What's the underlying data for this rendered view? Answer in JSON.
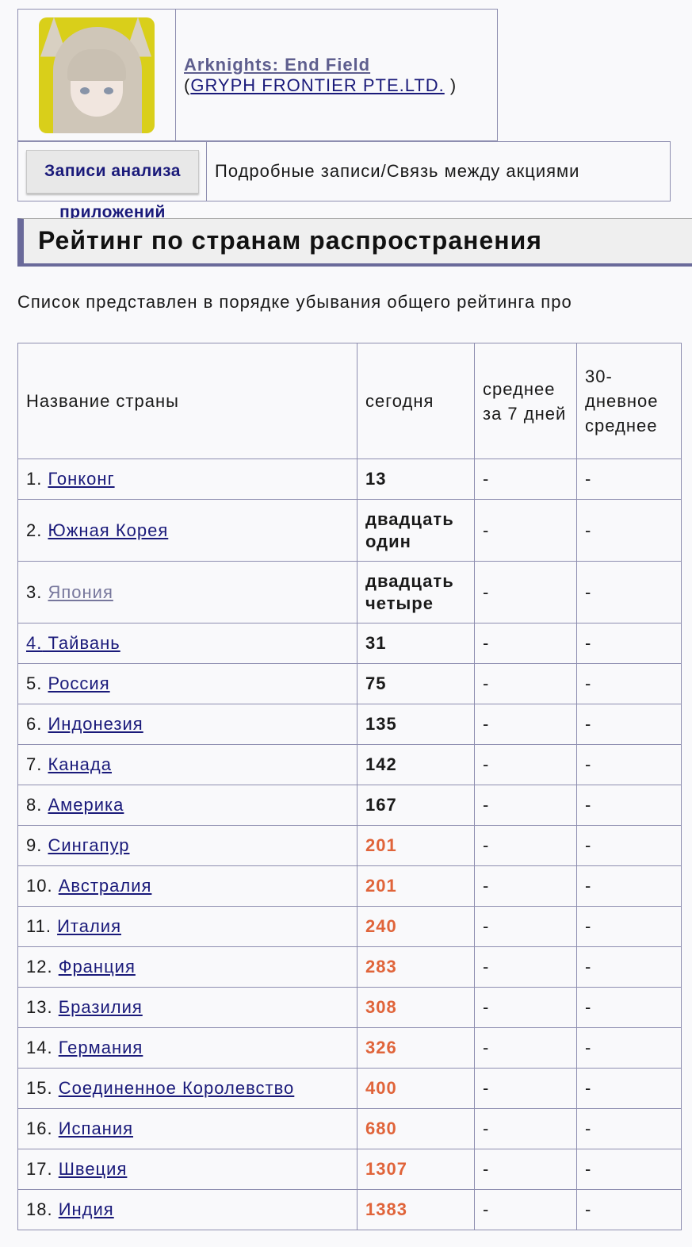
{
  "app": {
    "title": "Arknights: End Field",
    "developer": "GRYPH FRONTIER PTE.LTD.",
    "paren_open": "(",
    "paren_close": ")"
  },
  "nav": {
    "button_label": "Записи анализа приложений",
    "link_label": "Подробные записи/Связь между акциями"
  },
  "section": {
    "title": "Рейтинг по странам распространения",
    "description": "Список представлен в порядке убывания общего рейтинга про"
  },
  "colors": {
    "link": "#1a1a7a",
    "visited_link": "#77779c",
    "orange_value": "#e0643a",
    "accent": "#6a6a9a"
  },
  "table": {
    "headers": [
      "Название страны",
      "сегодня",
      "среднее за 7 дней",
      "30-дневное среднее"
    ],
    "rows": [
      {
        "rank": "1.",
        "country": "Гонконг",
        "today": "13",
        "avg7": "-",
        "avg30": "-"
      },
      {
        "rank": "2.",
        "country": "Южная Корея",
        "today": "двадцать один",
        "avg7": "-",
        "avg30": "-"
      },
      {
        "rank": "3.",
        "country": "Япония",
        "today": "двадцать четыре",
        "avg7": "-",
        "avg30": "-"
      },
      {
        "rank": "4.",
        "country": "Тайвань",
        "today": "31",
        "avg7": "-",
        "avg30": "-"
      },
      {
        "rank": "5.",
        "country": "Россия",
        "today": "75",
        "avg7": "-",
        "avg30": "-"
      },
      {
        "rank": "6.",
        "country": "Индонезия",
        "today": "135",
        "avg7": "-",
        "avg30": "-"
      },
      {
        "rank": "7.",
        "country": "Канада",
        "today": "142",
        "avg7": "-",
        "avg30": "-"
      },
      {
        "rank": "8.",
        "country": "Америка",
        "today": "167",
        "avg7": "-",
        "avg30": "-"
      },
      {
        "rank": "9.",
        "country": "Сингапур",
        "today": "201",
        "avg7": "-",
        "avg30": "-"
      },
      {
        "rank": "10.",
        "country": "Австралия",
        "today": "201",
        "avg7": "-",
        "avg30": "-"
      },
      {
        "rank": "11.",
        "country": "Италия",
        "today": "240",
        "avg7": "-",
        "avg30": "-"
      },
      {
        "rank": "12.",
        "country": "Франция",
        "today": "283",
        "avg7": "-",
        "avg30": "-"
      },
      {
        "rank": "13.",
        "country": "Бразилия",
        "today": "308",
        "avg7": "-",
        "avg30": "-"
      },
      {
        "rank": "14.",
        "country": "Германия",
        "today": "326",
        "avg7": "-",
        "avg30": "-"
      },
      {
        "rank": "15.",
        "country": "Соединенное Королевство",
        "today": "400",
        "avg7": "-",
        "avg30": "-"
      },
      {
        "rank": "16.",
        "country": "Испания",
        "today": "680",
        "avg7": "-",
        "avg30": "-"
      },
      {
        "rank": "17.",
        "country": "Швеция",
        "today": "1307",
        "avg7": "-",
        "avg30": "-"
      },
      {
        "rank": "18.",
        "country": "Индия",
        "today": "1383",
        "avg7": "-",
        "avg30": "-"
      }
    ]
  }
}
